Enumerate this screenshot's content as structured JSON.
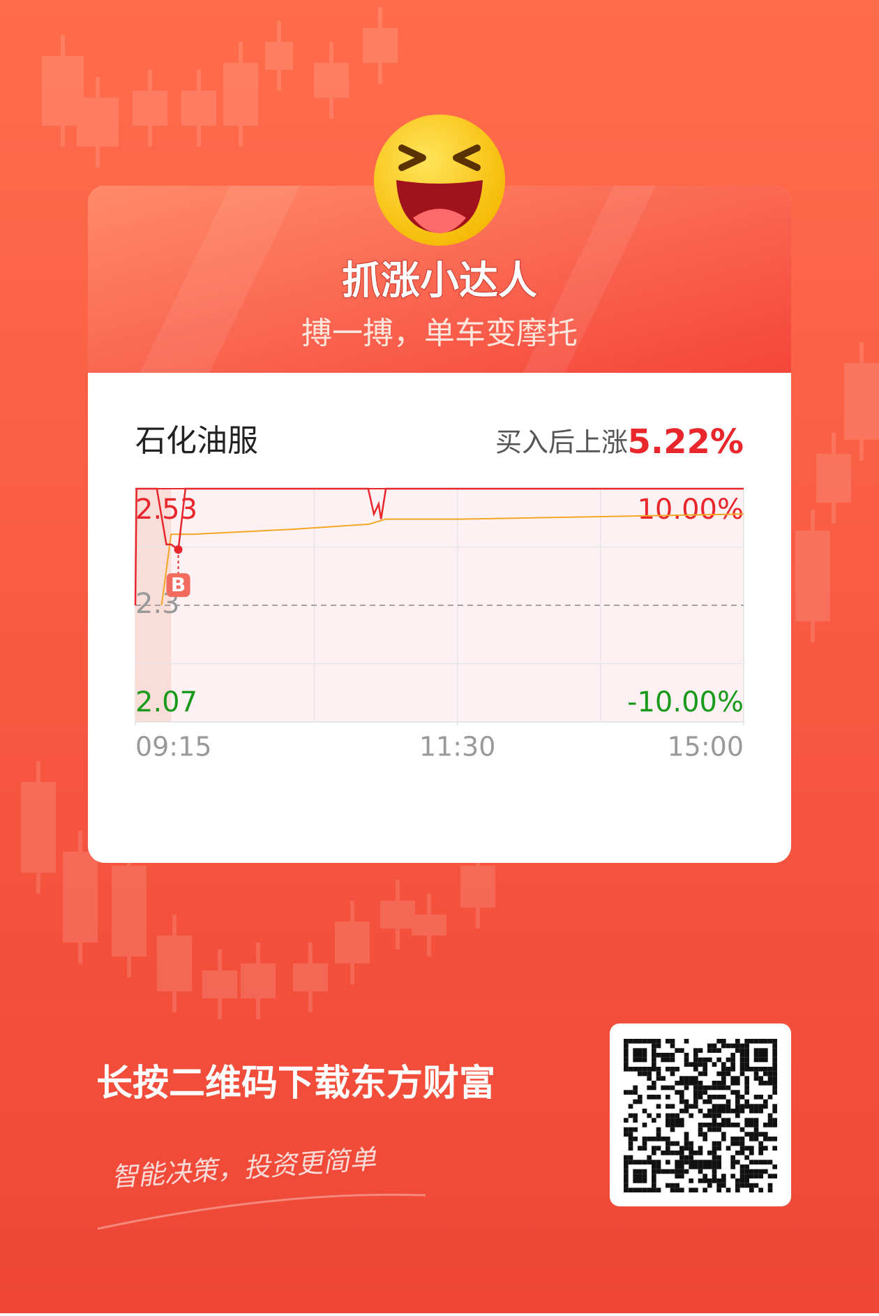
{
  "header": {
    "title": "抓涨小达人",
    "subtitle": "搏一搏，单车变摩托"
  },
  "stock": {
    "name": "石化油服",
    "gain_label": "买入后上涨",
    "gain": "5.22%"
  },
  "chart_data": {
    "type": "line",
    "xlim": [
      0,
      255
    ],
    "xticks": [
      {
        "value": 0,
        "label": "09:15"
      },
      {
        "value": 135,
        "label": "11:30"
      },
      {
        "value": 255,
        "label": "15:00"
      }
    ],
    "xgrid": [
      75,
      135,
      195
    ],
    "shaded_xlim": [
      0,
      15
    ],
    "ylim": [
      2.07,
      2.53
    ],
    "yticks": [
      2.07,
      2.3,
      2.53
    ],
    "ygrid": [
      2.185,
      2.415
    ],
    "y2lim": [
      -10,
      10
    ],
    "y2ticks": [
      {
        "value": -10,
        "label": "-10.00%"
      },
      {
        "value": 10,
        "label": "10.00%"
      }
    ],
    "series": [
      {
        "color": "#e8262c",
        "x": [
          0,
          0.5,
          9,
          13,
          15,
          18,
          21,
          97.6,
          100,
          102,
          103,
          105,
          255
        ],
        "values": [
          2.3,
          2.53,
          2.53,
          2.42,
          2.42,
          2.41,
          2.53,
          2.53,
          2.48,
          2.5,
          2.47,
          2.53,
          2.53
        ]
      },
      {
        "color": "#f5a623",
        "x": [
          11,
          15,
          24,
          66,
          98,
          105,
          136,
          255
        ],
        "values": [
          2.3,
          2.44,
          2.44,
          2.45,
          2.46,
          2.47,
          2.47,
          2.48
        ]
      }
    ],
    "buy_marker": {
      "x": 18,
      "value": 2.41,
      "label": "B"
    }
  },
  "footer": {
    "cta": "长按二维码下载东方财富",
    "slogan": "智能决策，投资更简单"
  }
}
